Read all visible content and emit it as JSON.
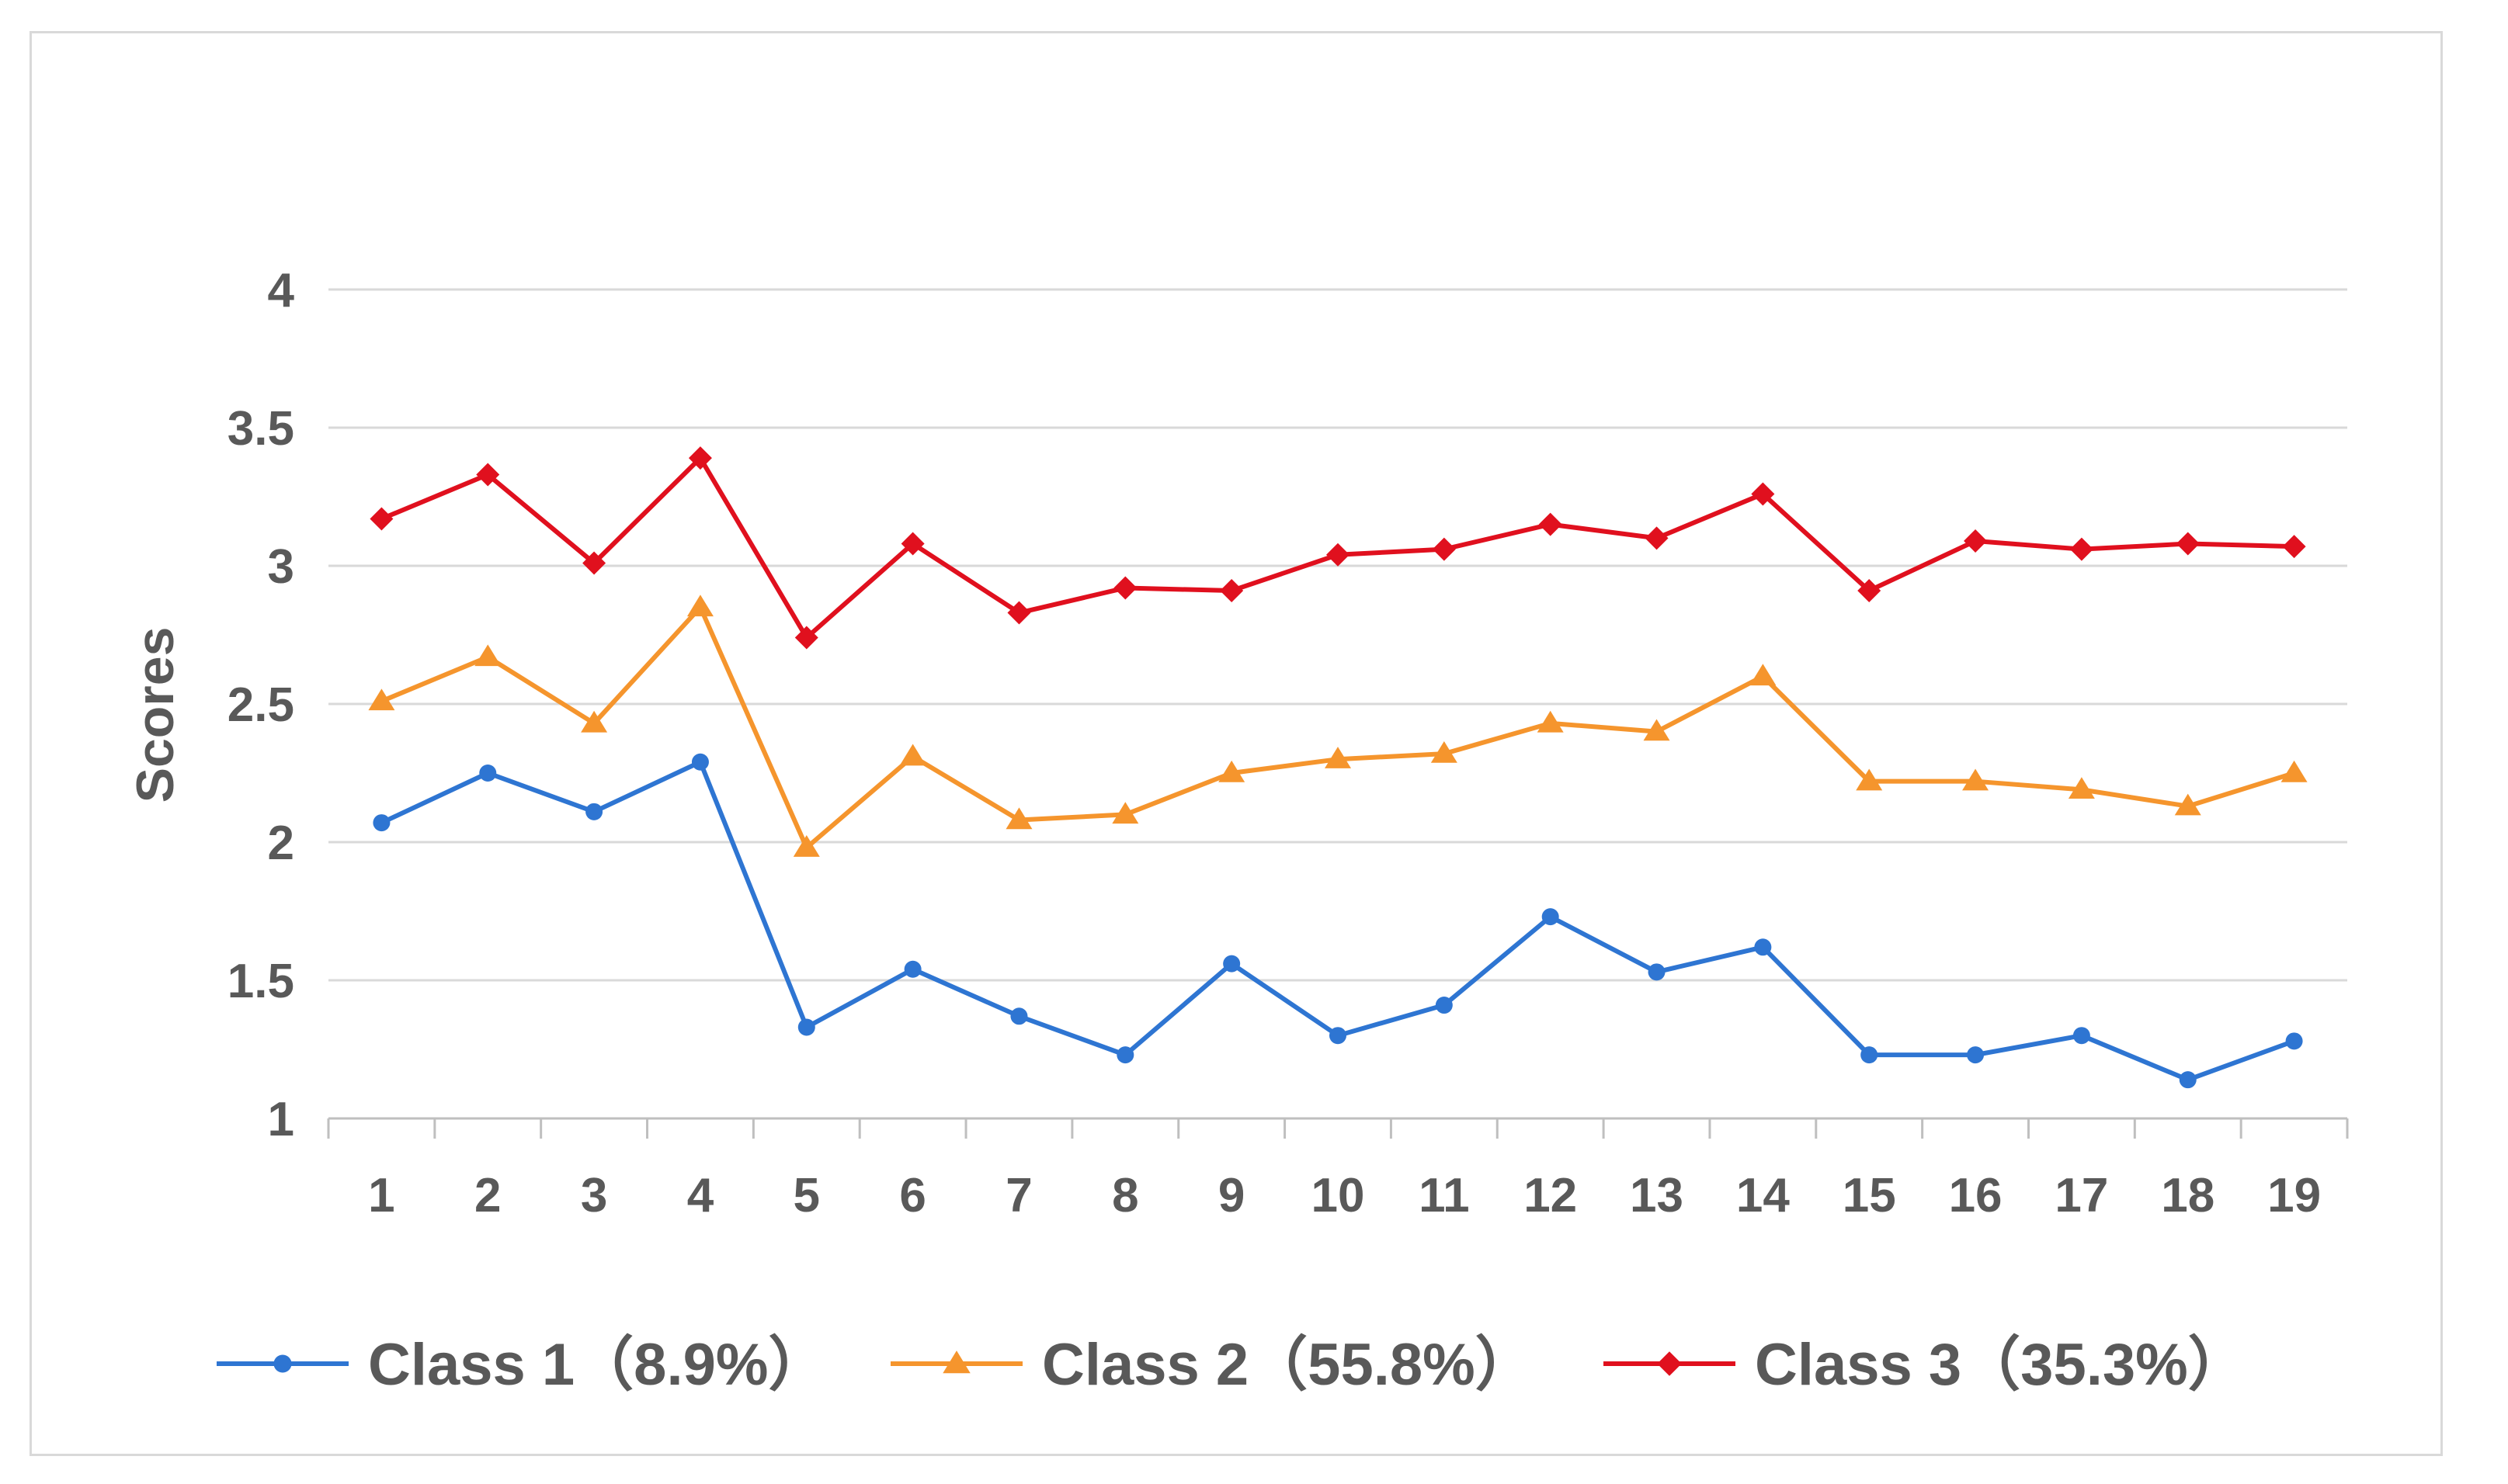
{
  "chart_data": {
    "type": "line",
    "title": "",
    "xlabel": "",
    "ylabel": "Scores",
    "x": [
      "1",
      "2",
      "3",
      "4",
      "5",
      "6",
      "7",
      "8",
      "9",
      "10",
      "11",
      "12",
      "13",
      "14",
      "15",
      "16",
      "17",
      "18",
      "19"
    ],
    "ylim": [
      1,
      4
    ],
    "y_ticks": [
      "1",
      "1.5",
      "2",
      "2.5",
      "3",
      "3.5",
      "4"
    ],
    "grid": "horizontal",
    "legend_position": "bottom",
    "series": [
      {
        "name": "Class 1（8.9%）",
        "color": "#2e75d2",
        "marker": "circle",
        "values": [
          2.07,
          2.25,
          2.11,
          2.29,
          1.33,
          1.54,
          1.37,
          1.23,
          1.56,
          1.3,
          1.41,
          1.73,
          1.53,
          1.62,
          1.23,
          1.23,
          1.3,
          1.14,
          1.28
        ]
      },
      {
        "name": "Class 2（55.8%）",
        "color": "#f5952d",
        "marker": "triangle",
        "values": [
          2.51,
          2.67,
          2.43,
          2.85,
          1.98,
          2.31,
          2.08,
          2.1,
          2.25,
          2.3,
          2.32,
          2.43,
          2.4,
          2.6,
          2.22,
          2.22,
          2.19,
          2.13,
          2.25
        ]
      },
      {
        "name": "Class 3（35.3%）",
        "color": "#e0101e",
        "marker": "diamond",
        "values": [
          3.17,
          3.33,
          3.01,
          3.39,
          2.74,
          3.08,
          2.83,
          2.92,
          2.91,
          3.04,
          3.06,
          3.15,
          3.1,
          3.26,
          2.91,
          3.09,
          3.06,
          3.08,
          3.07
        ]
      }
    ]
  }
}
